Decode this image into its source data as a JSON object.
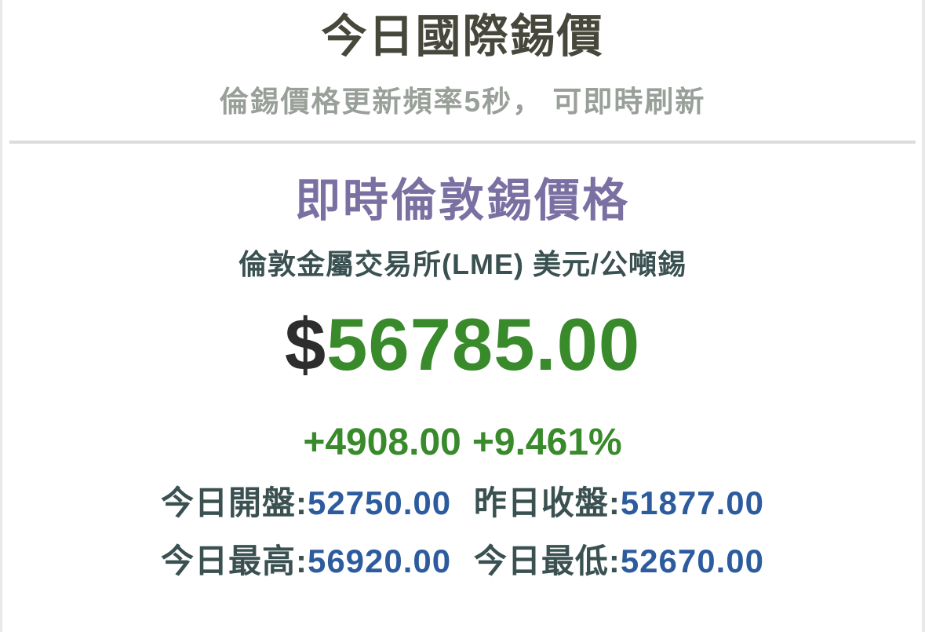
{
  "page": {
    "title": "今日國際錫價",
    "subtitle": "倫錫價格更新頻率5秒， 可即時刷新"
  },
  "live": {
    "heading": "即時倫敦錫價格",
    "exchange_line": "倫敦金屬交易所(LME) 美元/公噸錫",
    "currency_symbol": "$",
    "price": "56785.00",
    "change_absolute": "+4908.00",
    "change_percent": "+9.461%",
    "stats": [
      {
        "label": "今日開盤:",
        "value": "52750.00"
      },
      {
        "label": "昨日收盤:",
        "value": "51877.00"
      },
      {
        "label": "今日最高:",
        "value": "56920.00"
      },
      {
        "label": "今日最低:",
        "value": "52670.00"
      }
    ]
  },
  "colors": {
    "title": "#47473b",
    "subtitle": "#999f99",
    "divider": "#dcdcdc",
    "purple": "#7b70a2",
    "slate": "#3b5151",
    "green": "#388a2b",
    "dark": "#2d2d2d",
    "blue": "#2d5c9e",
    "edge": "#e9e9e9",
    "background": "#ffffff"
  }
}
